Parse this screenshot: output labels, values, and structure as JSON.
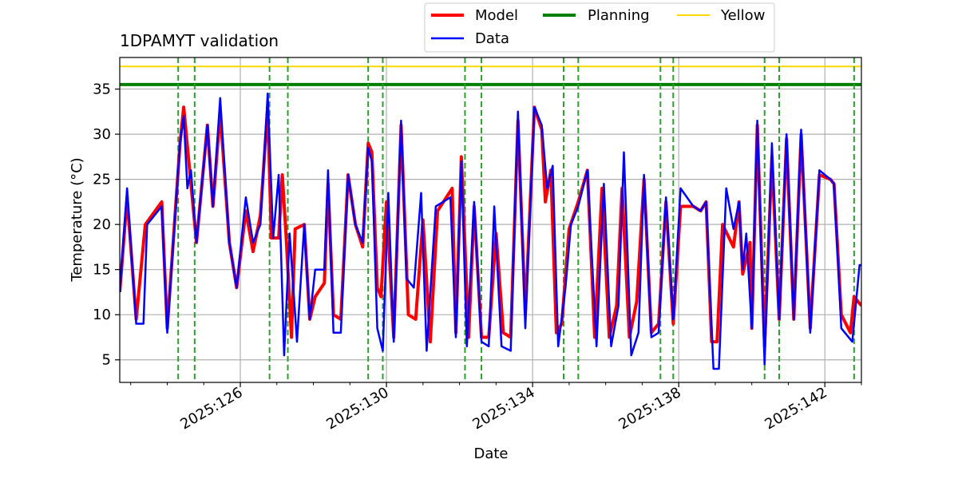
{
  "chart_data": {
    "type": "line",
    "title": "1DPAMYT validation",
    "xlabel": "Date",
    "ylabel": "Temperature ($^\\circ$C)",
    "ylabel_display": "Temperature (°C)",
    "xlim": [
      2025.1225,
      2025.1427
    ],
    "ylim": [
      2.5,
      38.5
    ],
    "x_ticks": [
      {
        "value": 126,
        "label": "2025:126"
      },
      {
        "value": 130,
        "label": "2025:130"
      },
      {
        "value": 134,
        "label": "2025:134"
      },
      {
        "value": 138,
        "label": "2025:138"
      },
      {
        "value": 142,
        "label": "2025:142"
      }
    ],
    "y_ticks": [
      5,
      10,
      15,
      20,
      25,
      30,
      35
    ],
    "x_domain_days": [
      122.7,
      143.0
    ],
    "grid": true,
    "legend_placement": "top-center-outside",
    "hlines": [
      {
        "name": "Planning",
        "value": 35.5,
        "color": "#008000"
      },
      {
        "name": "Yellow",
        "value": 37.5,
        "color": "#ffd700"
      }
    ],
    "vlines_days": [
      124.3,
      124.75,
      126.8,
      127.3,
      129.5,
      129.9,
      132.15,
      132.6,
      134.85,
      135.25,
      137.5,
      137.85,
      140.35,
      140.75,
      142.8
    ],
    "vline_color": "#2ca02c",
    "series": [
      {
        "name": "Model",
        "color": "#ff0000",
        "width": 4,
        "points": [
          [
            122.7,
            12.5
          ],
          [
            122.9,
            23
          ],
          [
            123.15,
            9.5
          ],
          [
            123.4,
            20
          ],
          [
            123.85,
            22.5
          ],
          [
            124.0,
            8.5
          ],
          [
            124.35,
            29
          ],
          [
            124.45,
            33
          ],
          [
            124.6,
            26.5
          ],
          [
            124.8,
            18
          ],
          [
            125.1,
            31
          ],
          [
            125.25,
            22
          ],
          [
            125.45,
            32.5
          ],
          [
            125.7,
            18
          ],
          [
            125.9,
            13
          ],
          [
            126.15,
            21.5
          ],
          [
            126.35,
            17
          ],
          [
            126.55,
            21
          ],
          [
            126.75,
            33
          ],
          [
            126.85,
            18.5
          ],
          [
            127.05,
            18.5
          ],
          [
            127.15,
            25.5
          ],
          [
            127.25,
            19
          ],
          [
            127.4,
            7.5
          ],
          [
            127.5,
            19.5
          ],
          [
            127.75,
            20
          ],
          [
            127.9,
            9.5
          ],
          [
            128.05,
            12
          ],
          [
            128.3,
            13.5
          ],
          [
            128.4,
            24.5
          ],
          [
            128.55,
            10
          ],
          [
            128.75,
            9.5
          ],
          [
            128.95,
            25.5
          ],
          [
            129.15,
            20
          ],
          [
            129.35,
            17.5
          ],
          [
            129.5,
            29
          ],
          [
            129.6,
            28
          ],
          [
            129.75,
            13
          ],
          [
            129.85,
            12
          ],
          [
            130.0,
            22.5
          ],
          [
            130.2,
            7.5
          ],
          [
            130.4,
            31
          ],
          [
            130.6,
            10
          ],
          [
            130.8,
            9.5
          ],
          [
            131.0,
            20.5
          ],
          [
            131.2,
            7
          ],
          [
            131.4,
            21.5
          ],
          [
            131.8,
            24
          ],
          [
            131.9,
            8
          ],
          [
            132.05,
            27.5
          ],
          [
            132.25,
            7.5
          ],
          [
            132.4,
            22
          ],
          [
            132.6,
            7.5
          ],
          [
            132.8,
            7.5
          ],
          [
            133.0,
            19
          ],
          [
            133.2,
            8
          ],
          [
            133.4,
            7.5
          ],
          [
            133.6,
            31.5
          ],
          [
            133.8,
            10
          ],
          [
            134.05,
            33
          ],
          [
            134.25,
            30.5
          ],
          [
            134.35,
            22.5
          ],
          [
            134.5,
            26
          ],
          [
            134.65,
            8
          ],
          [
            134.8,
            9
          ],
          [
            135.0,
            19.5
          ],
          [
            135.25,
            22.5
          ],
          [
            135.5,
            26
          ],
          [
            135.7,
            7.5
          ],
          [
            135.9,
            24
          ],
          [
            136.1,
            7.5
          ],
          [
            136.3,
            11
          ],
          [
            136.45,
            24
          ],
          [
            136.65,
            7.5
          ],
          [
            136.85,
            11.5
          ],
          [
            137.05,
            25
          ],
          [
            137.25,
            8
          ],
          [
            137.45,
            9
          ],
          [
            137.65,
            22.5
          ],
          [
            137.85,
            9
          ],
          [
            138.05,
            22
          ],
          [
            138.4,
            22
          ],
          [
            138.6,
            21.5
          ],
          [
            138.75,
            22.5
          ],
          [
            138.9,
            7
          ],
          [
            139.05,
            7
          ],
          [
            139.2,
            20
          ],
          [
            139.5,
            17.5
          ],
          [
            139.65,
            22.5
          ],
          [
            139.75,
            14.5
          ],
          [
            139.95,
            18
          ],
          [
            140.0,
            8.5
          ],
          [
            140.15,
            31
          ],
          [
            140.35,
            6.5
          ],
          [
            140.55,
            27.5
          ],
          [
            140.75,
            9.5
          ],
          [
            140.95,
            29.5
          ],
          [
            141.15,
            9.5
          ],
          [
            141.35,
            30
          ],
          [
            141.6,
            8.5
          ],
          [
            141.85,
            25.5
          ],
          [
            142.15,
            25
          ],
          [
            142.25,
            24.5
          ],
          [
            142.45,
            10
          ],
          [
            142.7,
            8
          ],
          [
            142.8,
            12
          ],
          [
            143.0,
            11
          ]
        ]
      },
      {
        "name": "Data",
        "color": "#0000ff",
        "width": 2.5,
        "points": [
          [
            122.7,
            12.5
          ],
          [
            122.9,
            24
          ],
          [
            123.15,
            9
          ],
          [
            123.35,
            9
          ],
          [
            123.45,
            20
          ],
          [
            123.85,
            22
          ],
          [
            124.0,
            8
          ],
          [
            124.35,
            29
          ],
          [
            124.45,
            32
          ],
          [
            124.55,
            24
          ],
          [
            124.65,
            26
          ],
          [
            124.8,
            18
          ],
          [
            125.1,
            31
          ],
          [
            125.25,
            22
          ],
          [
            125.45,
            34
          ],
          [
            125.7,
            18
          ],
          [
            125.9,
            13
          ],
          [
            126.15,
            23
          ],
          [
            126.35,
            18
          ],
          [
            126.55,
            20
          ],
          [
            126.75,
            34.5
          ],
          [
            126.9,
            18.5
          ],
          [
            127.05,
            25.5
          ],
          [
            127.2,
            5.5
          ],
          [
            127.35,
            19
          ],
          [
            127.55,
            7
          ],
          [
            127.75,
            20
          ],
          [
            127.9,
            9.5
          ],
          [
            128.05,
            15
          ],
          [
            128.3,
            15
          ],
          [
            128.4,
            26
          ],
          [
            128.55,
            8
          ],
          [
            128.75,
            8
          ],
          [
            128.95,
            25.5
          ],
          [
            129.15,
            20
          ],
          [
            129.35,
            18
          ],
          [
            129.5,
            28.5
          ],
          [
            129.6,
            27
          ],
          [
            129.75,
            8.5
          ],
          [
            129.9,
            6
          ],
          [
            130.05,
            23.5
          ],
          [
            130.2,
            7
          ],
          [
            130.4,
            31.5
          ],
          [
            130.55,
            14
          ],
          [
            130.75,
            13
          ],
          [
            130.95,
            23.5
          ],
          [
            131.1,
            6
          ],
          [
            131.35,
            22
          ],
          [
            131.75,
            23
          ],
          [
            131.9,
            7.5
          ],
          [
            132.05,
            27
          ],
          [
            132.2,
            6.5
          ],
          [
            132.4,
            22.5
          ],
          [
            132.6,
            7
          ],
          [
            132.8,
            6.5
          ],
          [
            132.95,
            22
          ],
          [
            133.15,
            6.5
          ],
          [
            133.4,
            6
          ],
          [
            133.6,
            32.5
          ],
          [
            133.8,
            8.5
          ],
          [
            134.05,
            33
          ],
          [
            134.25,
            31
          ],
          [
            134.4,
            24
          ],
          [
            134.55,
            26.5
          ],
          [
            134.7,
            6.5
          ],
          [
            134.9,
            13
          ],
          [
            135.05,
            20
          ],
          [
            135.25,
            22
          ],
          [
            135.5,
            26
          ],
          [
            135.75,
            6.5
          ],
          [
            135.95,
            24.5
          ],
          [
            136.15,
            6.5
          ],
          [
            136.35,
            11
          ],
          [
            136.5,
            28
          ],
          [
            136.7,
            5.5
          ],
          [
            136.9,
            8
          ],
          [
            137.05,
            25.5
          ],
          [
            137.25,
            7.5
          ],
          [
            137.45,
            8
          ],
          [
            137.65,
            23
          ],
          [
            137.85,
            9.5
          ],
          [
            138.05,
            24
          ],
          [
            138.4,
            22
          ],
          [
            138.6,
            21.5
          ],
          [
            138.75,
            22.5
          ],
          [
            138.95,
            4
          ],
          [
            139.1,
            4
          ],
          [
            139.3,
            24
          ],
          [
            139.5,
            19.5
          ],
          [
            139.65,
            22.5
          ],
          [
            139.75,
            15
          ],
          [
            139.85,
            19
          ],
          [
            140.0,
            8.5
          ],
          [
            140.15,
            31.5
          ],
          [
            140.35,
            4.5
          ],
          [
            140.55,
            29
          ],
          [
            140.75,
            9.5
          ],
          [
            140.95,
            30
          ],
          [
            141.15,
            9.5
          ],
          [
            141.35,
            30.5
          ],
          [
            141.6,
            8
          ],
          [
            141.85,
            26
          ],
          [
            142.15,
            25
          ],
          [
            142.25,
            24.5
          ],
          [
            142.45,
            8.5
          ],
          [
            142.75,
            7
          ],
          [
            142.95,
            15.5
          ],
          [
            143.0,
            15.5
          ]
        ]
      }
    ]
  }
}
